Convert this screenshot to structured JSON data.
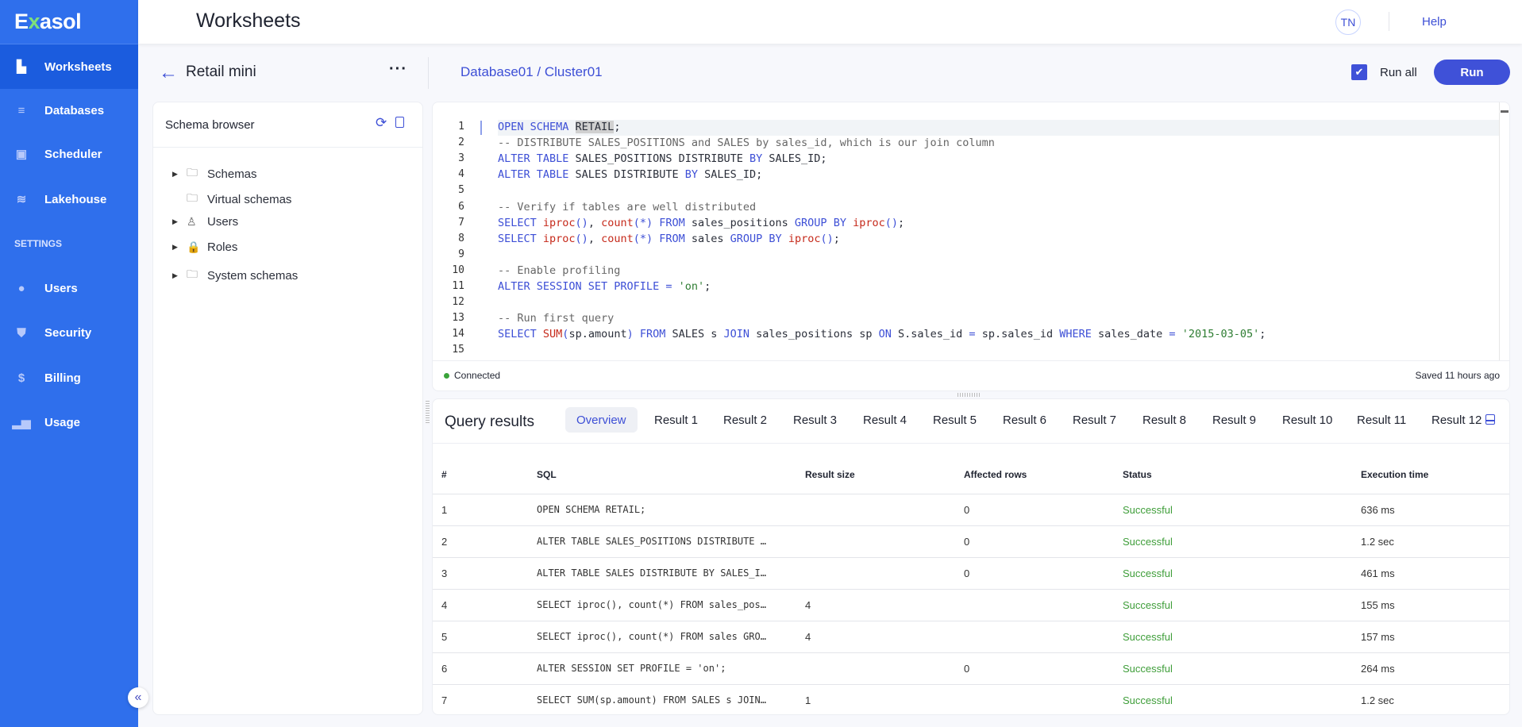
{
  "app": {
    "logo": "Exasol",
    "title": "Worksheets",
    "avatar": "TN",
    "help": "Help"
  },
  "sidebar": {
    "items": [
      {
        "label": "Worksheets",
        "icon": "document-icon",
        "glyph": "▙",
        "active": true
      },
      {
        "label": "Databases",
        "icon": "database-icon",
        "glyph": "≡"
      },
      {
        "label": "Scheduler",
        "icon": "calendar-clock-icon",
        "glyph": "▣"
      },
      {
        "label": "Lakehouse",
        "icon": "waves-icon",
        "glyph": "≋"
      }
    ],
    "settings_label": "SETTINGS",
    "settings_items": [
      {
        "label": "Users",
        "icon": "user-icon",
        "glyph": "●"
      },
      {
        "label": "Security",
        "icon": "shield-icon",
        "glyph": "⛊"
      },
      {
        "label": "Billing",
        "icon": "dollar-icon",
        "glyph": "$"
      },
      {
        "label": "Usage",
        "icon": "bar-chart-icon",
        "glyph": "▂▅"
      }
    ],
    "collapse_glyph": "«"
  },
  "toolbar": {
    "worksheet_name": "Retail mini",
    "more": "···",
    "breadcrumb": "Database01 / Cluster01",
    "run_all_label": "Run all",
    "run_all_checked": true,
    "run_label": "Run"
  },
  "schema_browser": {
    "title": "Schema browser",
    "items": [
      {
        "label": "Schemas",
        "expandable": true,
        "icon": "folder-icon"
      },
      {
        "label": "Virtual schemas",
        "expandable": false,
        "icon": "folder-icon"
      },
      {
        "label": "Users",
        "expandable": true,
        "icon": "user-icon"
      },
      {
        "label": "Roles",
        "expandable": true,
        "icon": "lock-icon"
      },
      {
        "label": "System schemas",
        "expandable": true,
        "icon": "folder-icon"
      }
    ]
  },
  "editor": {
    "lines": [
      [
        [
          "k",
          "OPEN SCHEMA "
        ],
        [
          "hl",
          "RETAIL"
        ],
        [
          "t",
          ";"
        ]
      ],
      [
        [
          "c",
          "-- DISTRIBUTE SALES_POSITIONS and SALES by sales_id, which is our join column"
        ]
      ],
      [
        [
          "k",
          "ALTER TABLE"
        ],
        [
          "t",
          " SALES_POSITIONS DISTRIBUTE "
        ],
        [
          "k",
          "BY"
        ],
        [
          "t",
          " SALES_ID;"
        ]
      ],
      [
        [
          "k",
          "ALTER TABLE"
        ],
        [
          "t",
          " SALES DISTRIBUTE "
        ],
        [
          "k",
          "BY"
        ],
        [
          "t",
          " SALES_ID;"
        ]
      ],
      [],
      [
        [
          "c",
          "-- Verify if tables are well distributed"
        ]
      ],
      [
        [
          "k",
          "SELECT "
        ],
        [
          "f",
          "iproc"
        ],
        [
          "p",
          "()"
        ],
        [
          "t",
          ", "
        ],
        [
          "f",
          "count"
        ],
        [
          "p",
          "(*)"
        ],
        [
          "k",
          " FROM"
        ],
        [
          "t",
          " sales_positions "
        ],
        [
          "k",
          "GROUP BY "
        ],
        [
          "f",
          "iproc"
        ],
        [
          "p",
          "()"
        ],
        [
          "t",
          ";"
        ]
      ],
      [
        [
          "k",
          "SELECT "
        ],
        [
          "f",
          "iproc"
        ],
        [
          "p",
          "()"
        ],
        [
          "t",
          ", "
        ],
        [
          "f",
          "count"
        ],
        [
          "p",
          "(*)"
        ],
        [
          "k",
          " FROM"
        ],
        [
          "t",
          " sales "
        ],
        [
          "k",
          "GROUP BY "
        ],
        [
          "f",
          "iproc"
        ],
        [
          "p",
          "()"
        ],
        [
          "t",
          ";"
        ]
      ],
      [],
      [
        [
          "c",
          "-- Enable profiling"
        ]
      ],
      [
        [
          "k",
          "ALTER SESSION SET PROFILE"
        ],
        [
          "t",
          " "
        ],
        [
          "p",
          "="
        ],
        [
          "t",
          " "
        ],
        [
          "s",
          "'on'"
        ],
        [
          "t",
          ";"
        ]
      ],
      [],
      [
        [
          "c",
          "-- Run first query"
        ]
      ],
      [
        [
          "k",
          "SELECT "
        ],
        [
          "f",
          "SUM"
        ],
        [
          "p",
          "("
        ],
        [
          "t",
          "sp.amount"
        ],
        [
          "p",
          ")"
        ],
        [
          "k",
          " FROM"
        ],
        [
          "t",
          " SALES s "
        ],
        [
          "k",
          "JOIN"
        ],
        [
          "t",
          " sales_positions sp "
        ],
        [
          "k",
          "ON"
        ],
        [
          "t",
          " S.sales_id "
        ],
        [
          "p",
          "="
        ],
        [
          "t",
          " sp.sales_id "
        ],
        [
          "k",
          "WHERE"
        ],
        [
          "t",
          " sales_date "
        ],
        [
          "p",
          "="
        ],
        [
          "t",
          " "
        ],
        [
          "s",
          "'2015-03-05'"
        ],
        [
          "t",
          ";"
        ]
      ],
      []
    ],
    "status": "Connected",
    "saved": "Saved 11 hours ago"
  },
  "results": {
    "title": "Query results",
    "tabs": [
      "Overview",
      "Result 1",
      "Result 2",
      "Result 3",
      "Result 4",
      "Result 5",
      "Result 6",
      "Result 7",
      "Result 8",
      "Result 9",
      "Result 10",
      "Result 11",
      "Result 12"
    ],
    "active_tab": "Overview",
    "columns": [
      "#",
      "SQL",
      "Result size",
      "Affected rows",
      "Status",
      "Execution time"
    ],
    "rows": [
      [
        "1",
        "OPEN SCHEMA RETAIL;",
        "",
        "0",
        "Successful",
        "636 ms"
      ],
      [
        "2",
        "ALTER TABLE SALES_POSITIONS DISTRIBUTE …",
        "",
        "0",
        "Successful",
        "1.2 sec"
      ],
      [
        "3",
        "ALTER TABLE SALES DISTRIBUTE BY SALES_I…",
        "",
        "0",
        "Successful",
        "461 ms"
      ],
      [
        "4",
        "SELECT iproc(), count(*) FROM sales_pos…",
        "4",
        "",
        "Successful",
        "155 ms"
      ],
      [
        "5",
        "SELECT iproc(), count(*) FROM sales GRO…",
        "4",
        "",
        "Successful",
        "157 ms"
      ],
      [
        "6",
        "ALTER SESSION SET PROFILE = 'on';",
        "",
        "0",
        "Successful",
        "264 ms"
      ],
      [
        "7",
        "SELECT SUM(sp.amount) FROM SALES s JOIN…",
        "1",
        "",
        "Successful",
        "1.2 sec"
      ]
    ]
  },
  "colors": {
    "sidebar": "#2f6fec",
    "sidebar_active": "#1b5cde",
    "accent": "#3f51d8",
    "success": "#3f9e3a",
    "keyword": "#3d4fd6",
    "function": "#c62a1b",
    "string": "#2e7d32"
  }
}
